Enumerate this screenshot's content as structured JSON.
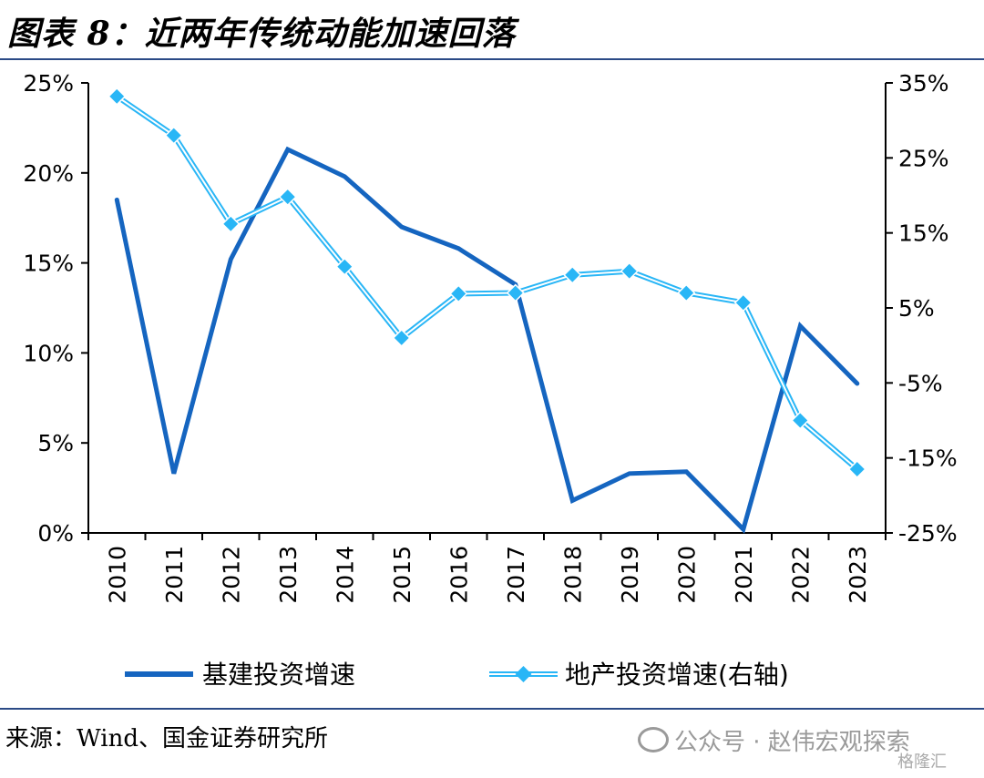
{
  "title": "图表 8：近两年传统动能加速回落",
  "source": "来源：Wind、国金证券研究所",
  "watermark": "公众号 · 赵伟宏观探索",
  "logo": "格隆汇",
  "colors": {
    "infra": "#1565c0",
    "property": "#29b6f6",
    "rule": "#2b4a86"
  },
  "chart_data": {
    "type": "line",
    "categories": [
      "2010",
      "2011",
      "2012",
      "2013",
      "2014",
      "2015",
      "2016",
      "2017",
      "2018",
      "2019",
      "2020",
      "2021",
      "2022",
      "2023"
    ],
    "left_axis": {
      "ylim": [
        0,
        25
      ],
      "ticks": [
        0,
        5,
        10,
        15,
        20,
        25
      ],
      "tick_labels": [
        "0%",
        "5%",
        "10%",
        "15%",
        "20%",
        "25%"
      ]
    },
    "right_axis": {
      "ylim": [
        -25,
        35
      ],
      "ticks": [
        -25,
        -15,
        -5,
        5,
        15,
        25,
        35
      ],
      "tick_labels": [
        "-25%",
        "-15%",
        "-5%",
        "5%",
        "15%",
        "25%",
        "35%"
      ]
    },
    "series": [
      {
        "name": "基建投资增速",
        "axis": "left",
        "style": "line",
        "values": [
          18.5,
          3.3,
          15.2,
          21.3,
          19.8,
          17.0,
          15.8,
          13.8,
          1.8,
          3.3,
          3.4,
          0.2,
          11.5,
          8.3
        ]
      },
      {
        "name": "地产投资增速(右轴)",
        "axis": "right",
        "style": "line-diamond",
        "values": [
          33.2,
          28.0,
          16.2,
          19.8,
          10.5,
          1.0,
          6.9,
          7.0,
          9.4,
          9.9,
          7.0,
          5.7,
          -10.0,
          -16.5
        ]
      }
    ],
    "legend_position": "bottom",
    "grid": false
  }
}
